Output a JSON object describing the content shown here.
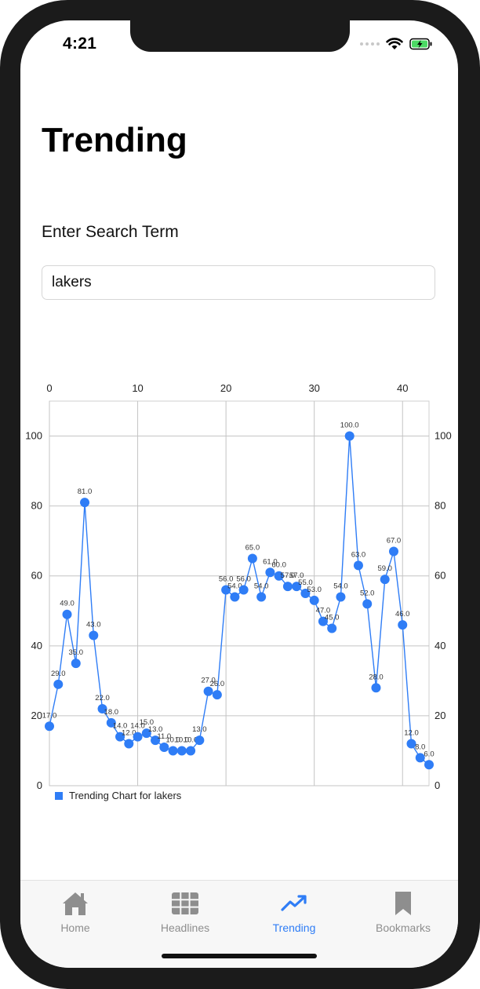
{
  "status_bar": {
    "time": "4:21"
  },
  "page": {
    "title": "Trending"
  },
  "search": {
    "label": "Enter Search Term",
    "value": "lakers"
  },
  "chart_data": {
    "type": "line",
    "x": [
      0,
      1,
      2,
      3,
      4,
      5,
      6,
      7,
      8,
      9,
      10,
      11,
      12,
      13,
      14,
      15,
      16,
      17,
      18,
      19,
      20,
      21,
      22,
      23,
      24,
      25,
      26,
      27,
      28,
      29,
      30,
      31,
      32,
      33,
      34,
      35,
      36,
      37,
      38,
      39,
      40,
      41,
      42,
      43
    ],
    "series": [
      {
        "name": "Trending Chart for lakers",
        "values": [
          17,
          29,
          49,
          35,
          81,
          43,
          22,
          18,
          14,
          12,
          14,
          15,
          13,
          11,
          10,
          10,
          10,
          13,
          27,
          26,
          56,
          54,
          56,
          65,
          54,
          61,
          60,
          57,
          57,
          55,
          53,
          47,
          45,
          54,
          100,
          63,
          52,
          28,
          59,
          67,
          46,
          12,
          8,
          6
        ]
      }
    ],
    "point_labels": [
      "17.0",
      "29.0",
      "49.0",
      "35.0",
      "81.0",
      "43.0",
      "22.0",
      "18.0",
      "14.0",
      "12.0",
      "14.0",
      "15.0",
      "13.0",
      "11.0",
      "10.0",
      "10.0",
      "10.0",
      "13.0",
      "27.0",
      "26.0",
      "56.0",
      "54.0",
      "56.0",
      "65.0",
      "54.0",
      "61.0",
      "60.0",
      "57.0",
      "57.0",
      "55.0",
      "53.0",
      "47.0",
      "45.0",
      "54.0",
      "100.0",
      "63.0",
      "52.0",
      "28.0",
      "59.0",
      "67.0",
      "46.0",
      "12.0",
      "8.0",
      "6.0"
    ],
    "x_ticks": [
      "0",
      "10",
      "20",
      "30",
      "40"
    ],
    "y_ticks": [
      "0",
      "20",
      "40",
      "60",
      "80",
      "100"
    ],
    "xlim": [
      0,
      43
    ],
    "ylim": [
      0,
      110
    ],
    "x_axis_position": "top",
    "y_axis_position": "both",
    "grid": true,
    "legend": "bottom-left",
    "color": "#2f7df6"
  },
  "legend": {
    "label": "Trending Chart for lakers"
  },
  "tabbar": {
    "items": [
      {
        "label": "Home",
        "icon": "house-icon"
      },
      {
        "label": "Headlines",
        "icon": "grid-icon"
      },
      {
        "label": "Trending",
        "icon": "trending-icon"
      },
      {
        "label": "Bookmarks",
        "icon": "bookmark-icon"
      }
    ],
    "active": "Trending",
    "active_color": "#2f7df6",
    "inactive_color": "#8e8e8e"
  }
}
